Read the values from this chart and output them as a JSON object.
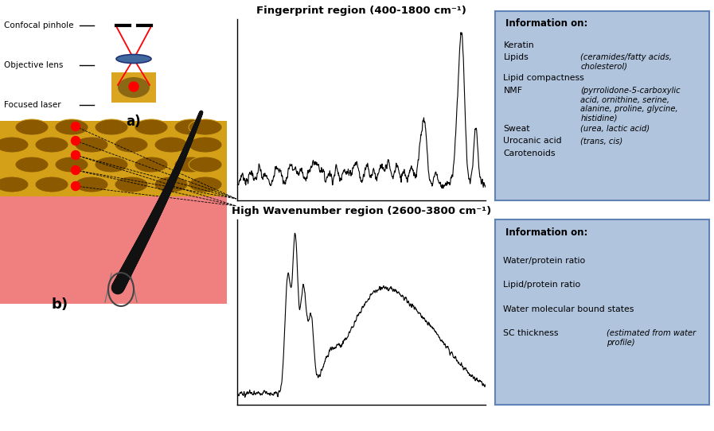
{
  "fig_width": 8.97,
  "fig_height": 5.42,
  "bg_color": "#ffffff",
  "skin_top_color": "#D4A017",
  "cell_color": "#8B5A00",
  "skin_bottom_color": "#F08080",
  "hair_color": "#111111",
  "laser_dot_color": "#FF0000",
  "lens_color": "#4169A0",
  "sample_color": "#DAA520",
  "sample_spot_color": "#8B6914",
  "box_color": "#B0C4DE",
  "box_edge_color": "#6082B6",
  "title1": "Fingerprint region (400-1800 cm⁻¹)",
  "title2": "High Wavenumber region (2600-3800 cm⁻¹)",
  "info_title": "Information on:",
  "label_a": "a)",
  "label_b": "b)",
  "pinhole_label": "Confocal pinhole",
  "lens_label": "Objective lens",
  "laser_label": "Focused laser"
}
